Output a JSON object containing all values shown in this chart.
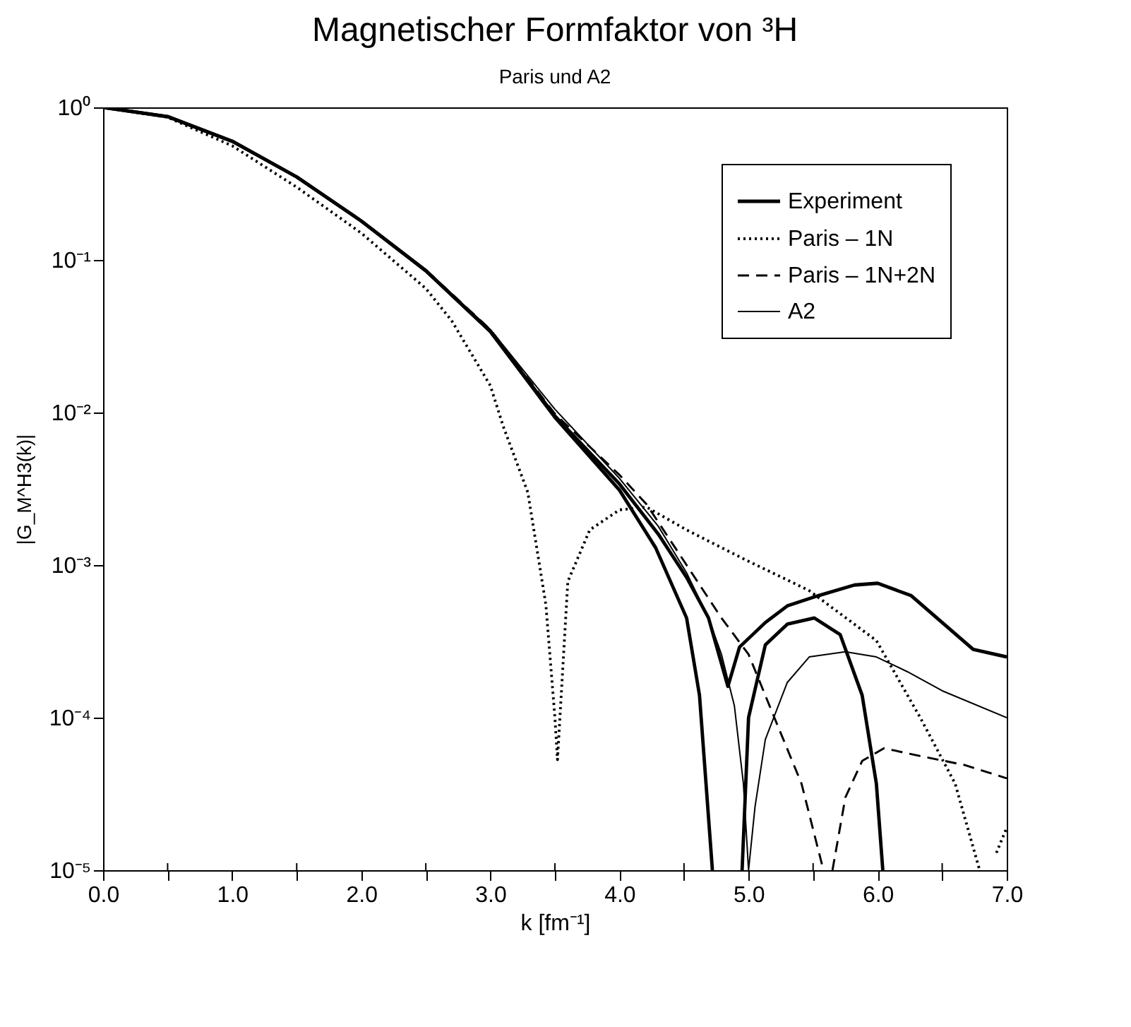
{
  "chart_data": {
    "type": "line",
    "title": "Magnetischer Formfaktor von ³H",
    "subtitle": "Paris und A2",
    "xlabel": "k [fm⁻¹]",
    "ylabel": "|G_M^H3(k)|",
    "log": "y",
    "grid": false,
    "legend": "top right",
    "marker": "none",
    "xlim": [
      0,
      7
    ],
    "xticks": [
      {
        "value": 0,
        "label": "0.0"
      },
      {
        "value": 0.5,
        "label": null
      },
      {
        "value": 1,
        "label": "1.0"
      },
      {
        "value": 1.5,
        "label": null
      },
      {
        "value": 2,
        "label": "2.0"
      },
      {
        "value": 2.5,
        "label": null
      },
      {
        "value": 3,
        "label": "3.0"
      },
      {
        "value": 3.5,
        "label": null
      },
      {
        "value": 4,
        "label": "4.0"
      },
      {
        "value": 4.5,
        "label": null
      },
      {
        "value": 5,
        "label": "5.0"
      },
      {
        "value": 5.5,
        "label": null
      },
      {
        "value": 6,
        "label": "6.0"
      },
      {
        "value": 6.5,
        "label": null
      },
      {
        "value": 7,
        "label": "7.0"
      }
    ],
    "ylim": [
      1e-05,
      1
    ],
    "yticks": [
      {
        "value": 1e-05,
        "label": "10⁻⁵"
      },
      {
        "value": 0.0001,
        "label": "10⁻⁴"
      },
      {
        "value": 0.001,
        "label": "10⁻³"
      },
      {
        "value": 0.01,
        "label": "10⁻²"
      },
      {
        "value": 0.1,
        "label": "10⁻¹"
      },
      {
        "value": 1,
        "label": "10⁰"
      }
    ],
    "series": [
      {
        "name": "Experiment",
        "color": "#000000",
        "line_style": "solid",
        "x": [
          0,
          0.5,
          1,
          1.5,
          2,
          2.5,
          3,
          3.5,
          4.0,
          4.3,
          4.52,
          4.69,
          4.84,
          4.93,
          5.13,
          5.3,
          5.54,
          5.82,
          6.0,
          6.26,
          6.5,
          6.74,
          7.0
        ],
        "values": [
          1,
          0.87,
          0.6,
          0.35,
          0.18,
          0.085,
          0.034,
          0.0095,
          0.0034,
          0.0016,
          0.00083,
          0.00045,
          0.00016,
          0.00029,
          0.00042,
          0.00054,
          0.00063,
          0.00074,
          0.00076,
          0.00063,
          0.00042,
          0.00028,
          0.00025
        ]
      },
      {
        "color": "#000000",
        "line_style": "solid",
        "x": [
          0,
          0.5,
          1,
          1.5,
          2,
          2.5,
          3,
          3.5,
          4.0,
          4.28,
          4.52,
          4.62,
          4.72,
          4.84,
          4.95,
          5.0,
          5.13,
          5.3,
          5.51,
          5.71,
          5.88,
          5.99,
          6.04
        ],
        "values": [
          1,
          0.87,
          0.6,
          0.35,
          0.18,
          0.085,
          0.034,
          0.0093,
          0.0031,
          0.0013,
          0.00045,
          0.00014,
          1e-05,
          null,
          1e-05,
          0.0001,
          0.0003,
          0.00041,
          0.00045,
          0.00035,
          0.00014,
          3.7e-05,
          1e-05
        ]
      },
      {
        "name": "Paris – 1N",
        "color": "#000000",
        "line_style": "dotted",
        "x": [
          0,
          0.5,
          1,
          1.5,
          2,
          2.5,
          2.7,
          3.0,
          3.1,
          3.29,
          3.43,
          3.5,
          3.52,
          3.6,
          3.77,
          4.0,
          4.21,
          4.52,
          4.96,
          5.47,
          5.99,
          6.33,
          6.6,
          6.79,
          6.85,
          6.92,
          7.0
        ],
        "values": [
          1,
          0.86,
          0.56,
          0.3,
          0.15,
          0.065,
          0.04,
          0.015,
          0.0081,
          0.003,
          0.00055,
          0.0001,
          5.3e-05,
          0.00078,
          0.0017,
          0.0023,
          0.0024,
          0.0017,
          0.0011,
          0.00068,
          0.00032,
          0.0001,
          3.7e-05,
          1e-05,
          null,
          1.3e-05,
          1.9e-05
        ]
      },
      {
        "name": "Paris – 1N+2N",
        "color": "#000000",
        "line_style": "dashed",
        "x": [
          0,
          0.5,
          1,
          1.5,
          2,
          2.5,
          3,
          3.5,
          4.0,
          4.21,
          4.52,
          4.79,
          5.0,
          5.2,
          5.41,
          5.58,
          5.62,
          5.65,
          5.75,
          5.88,
          6.05,
          6.33,
          6.67,
          7.0
        ],
        "values": [
          1,
          0.87,
          0.6,
          0.35,
          0.18,
          0.086,
          0.035,
          0.0098,
          0.0039,
          0.0025,
          0.001,
          0.00045,
          0.00026,
          0.0001,
          3.7e-05,
          1e-05,
          null,
          1e-05,
          3e-05,
          5.2e-05,
          6.3e-05,
          5.6e-05,
          4.9e-05,
          4e-05
        ]
      },
      {
        "name": "A2",
        "color": "#000000",
        "line_style": "solid",
        "x": [
          0,
          0.5,
          1,
          1.5,
          2,
          2.5,
          3,
          3.5,
          4.0,
          4.3,
          4.52,
          4.69,
          4.79,
          4.89,
          4.96,
          5.0,
          5.05,
          5.13,
          5.3,
          5.47,
          5.75,
          5.99,
          6.23,
          6.5,
          7.0
        ],
        "values": [
          1,
          0.87,
          0.6,
          0.35,
          0.18,
          0.086,
          0.035,
          0.0105,
          0.0037,
          0.0018,
          0.00089,
          0.00045,
          0.00026,
          0.00012,
          3.7e-05,
          1e-05,
          2.6e-05,
          7.2e-05,
          0.00017,
          0.00025,
          0.00027,
          0.00025,
          0.0002,
          0.00015,
          0.0001
        ]
      }
    ]
  }
}
